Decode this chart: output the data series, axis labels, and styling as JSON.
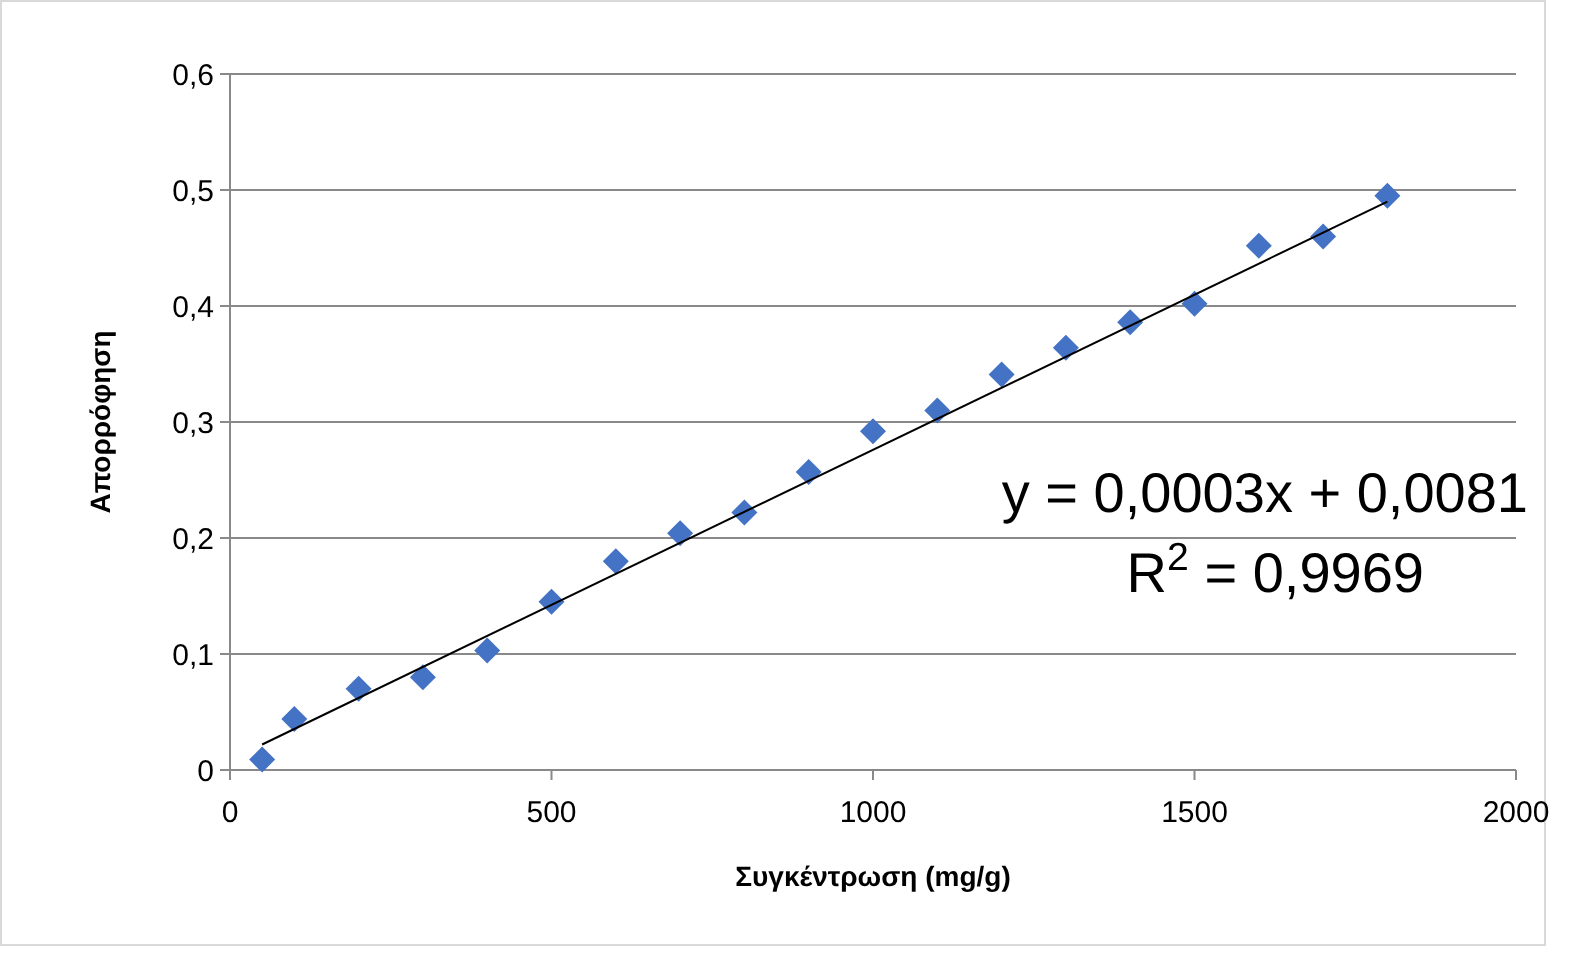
{
  "chart_data": {
    "type": "scatter",
    "xlabel": "Συγκέντρωση (mg/g)",
    "ylabel": "Απορρόφηση",
    "x": [
      50,
      100,
      200,
      300,
      400,
      500,
      600,
      700,
      800,
      900,
      1000,
      1100,
      1200,
      1300,
      1400,
      1500,
      1600,
      1700,
      1800
    ],
    "series": [
      {
        "color": "#4472c4",
        "marker": "diamond",
        "values": [
          0.009,
          0.044,
          0.07,
          0.08,
          0.103,
          0.145,
          0.18,
          0.204,
          0.222,
          0.257,
          0.292,
          0.31,
          0.341,
          0.364,
          0.386,
          0.402,
          0.452,
          0.46,
          0.495
        ]
      },
      {
        "type": "line",
        "color": "#000000",
        "x": [
          50,
          1800
        ],
        "values": [
          0.022,
          0.49
        ]
      }
    ],
    "xlim": [
      0,
      2000
    ],
    "xticks": [
      0,
      500,
      1000,
      1500,
      2000
    ],
    "ylim": [
      0,
      0.6
    ],
    "yticks": [
      {
        "value": 0,
        "label": "0"
      },
      {
        "value": 0.1,
        "label": "0,1"
      },
      {
        "value": 0.2,
        "label": "0,2"
      },
      {
        "value": 0.3,
        "label": "0,3"
      },
      {
        "value": 0.4,
        "label": "0,4"
      },
      {
        "value": 0.5,
        "label": "0,5"
      },
      {
        "value": 0.6,
        "label": "0,6"
      }
    ],
    "grid": "y",
    "annotations": [
      "y = 0,0003x + 0,0081",
      "R$^{2}$ = 0,9969"
    ]
  }
}
